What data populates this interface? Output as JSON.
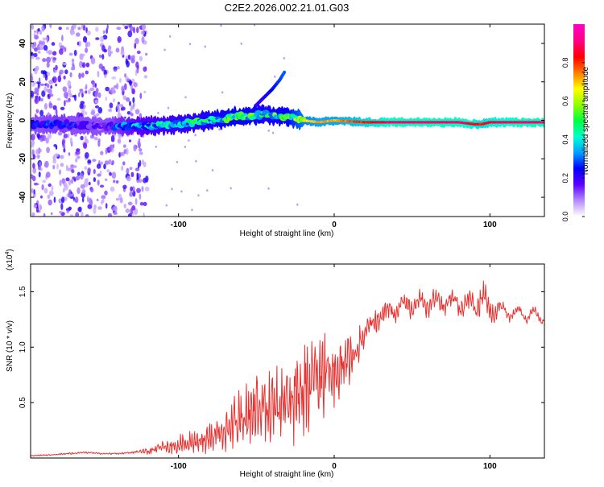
{
  "page_title": "C2E2.2026.002.21.01.G03",
  "chart_data": [
    {
      "type": "heatmap",
      "xlabel": "Height of straight line (km)",
      "ylabel": "Frequency (Hz)",
      "xlim": [
        -195,
        135
      ],
      "ylim": [
        -50,
        50
      ],
      "xticks": [
        -100,
        0,
        100
      ],
      "xtick_labels": [
        "-100",
        "0",
        "100"
      ],
      "yticks": [
        -40,
        -20,
        0,
        20,
        40
      ],
      "ytick_labels": [
        "-40",
        "-20",
        "0",
        "20",
        "40"
      ],
      "colorbar": {
        "label": "Normalized spectral amplitude",
        "range": [
          0,
          1
        ],
        "ticks": [
          0.0,
          0.2,
          0.4,
          0.6,
          0.8
        ],
        "tick_labels": [
          "0.0",
          "0.2",
          "0.4",
          "0.6",
          "0.8"
        ],
        "colors": [
          "#ffffff",
          "#b488ff",
          "#5b00ff",
          "#0000ff",
          "#00a0ff",
          "#00ffd0",
          "#00ff40",
          "#90ff00",
          "#ffff00",
          "#ff8000",
          "#ff0000",
          "#ff0080",
          "#ff00c0"
        ]
      },
      "features": {
        "noise_region_x": [
          -195,
          -120
        ],
        "main_band": {
          "x": [
            -195,
            -175,
            -150,
            -140,
            -120,
            -100,
            -80,
            -60,
            -45,
            -30,
            -20,
            -10,
            0,
            20,
            40,
            60,
            80,
            90,
            95,
            100,
            120,
            135
          ],
          "y": [
            -2,
            -2,
            -3,
            -3,
            -3,
            -2,
            0,
            2,
            3,
            2,
            0,
            -1,
            0,
            -1,
            -1,
            -1,
            -1,
            -2,
            -2,
            -1,
            -1,
            -1
          ],
          "amplitude": [
            0.25,
            0.3,
            0.15,
            0.3,
            0.4,
            0.45,
            0.5,
            0.55,
            0.5,
            0.55,
            0.7,
            0.75,
            0.75,
            0.85,
            0.95,
            0.95,
            0.95,
            0.9,
            0.85,
            0.9,
            0.95,
            0.95
          ]
        },
        "rising_streak": {
          "x": [
            -50,
            -45,
            -40,
            -35,
            -32
          ],
          "y": [
            8,
            12,
            16,
            21,
            25
          ],
          "amplitude": [
            0.2,
            0.22,
            0.25,
            0.28,
            0.3
          ]
        }
      }
    },
    {
      "type": "line",
      "xlabel": "Height of straight line (km)",
      "ylabel": "SNR (10 * v/v)",
      "multiplier": "(x10",
      "multiplier_exponent": "4",
      "multiplier_close": ")",
      "xlim": [
        -195,
        135
      ],
      "ylim": [
        0,
        1.75
      ],
      "xticks": [
        -100,
        0,
        100
      ],
      "xtick_labels": [
        "-100",
        "0",
        "100"
      ],
      "yticks": [
        0.5,
        1.0,
        1.5
      ],
      "ytick_labels": [
        "0.5",
        "1.0",
        "1.5"
      ],
      "series": [
        {
          "name": "SNR",
          "color": "#e8302e",
          "x": [
            -195,
            -180,
            -170,
            -160,
            -150,
            -140,
            -130,
            -120,
            -110,
            -100,
            -90,
            -80,
            -70,
            -60,
            -50,
            -40,
            -30,
            -20,
            -10,
            0,
            10,
            20,
            30,
            40,
            50,
            60,
            70,
            80,
            90,
            95,
            100,
            110,
            120,
            135
          ],
          "y": [
            0.02,
            0.03,
            0.04,
            0.05,
            0.04,
            0.04,
            0.05,
            0.06,
            0.1,
            0.12,
            0.14,
            0.18,
            0.25,
            0.35,
            0.4,
            0.45,
            0.5,
            0.65,
            0.72,
            0.78,
            0.9,
            1.12,
            1.3,
            1.35,
            1.38,
            1.4,
            1.42,
            1.4,
            1.38,
            1.45,
            1.35,
            1.32,
            1.3,
            1.28
          ],
          "noise": [
            0.004,
            0.01,
            0.01,
            0.008,
            0.008,
            0.008,
            0.01,
            0.03,
            0.06,
            0.09,
            0.1,
            0.14,
            0.2,
            0.28,
            0.32,
            0.35,
            0.4,
            0.45,
            0.4,
            0.3,
            0.22,
            0.12,
            0.1,
            0.09,
            0.09,
            0.09,
            0.08,
            0.08,
            0.1,
            0.18,
            0.1,
            0.05,
            0.04,
            0.03
          ]
        }
      ]
    }
  ]
}
